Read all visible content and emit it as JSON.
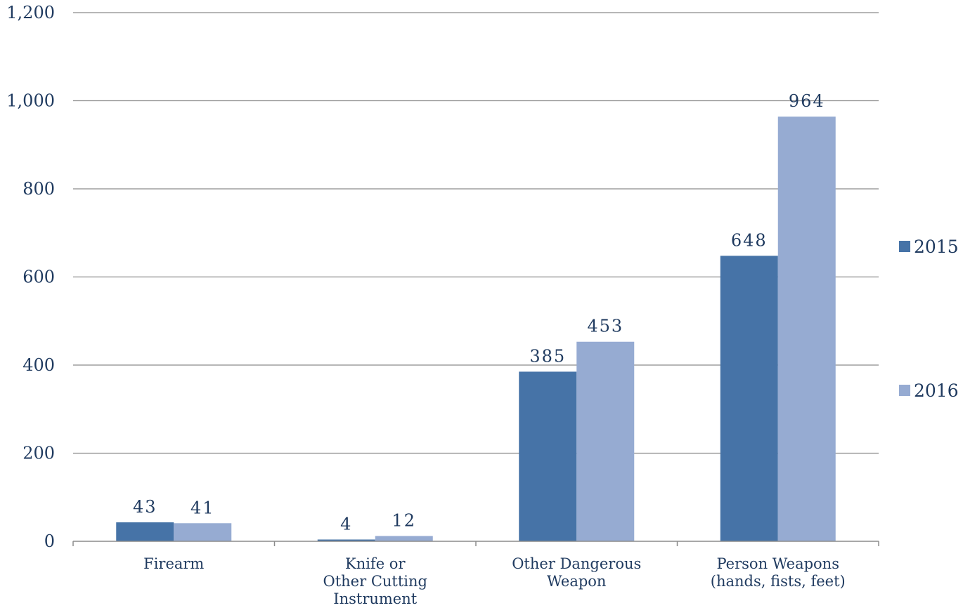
{
  "chart_data": {
    "type": "bar",
    "categories": [
      [
        "Firearm"
      ],
      [
        "Knife or",
        "Other Cutting",
        "Instrument"
      ],
      [
        "Other Dangerous",
        "Weapon"
      ],
      [
        "Person Weapons",
        "(hands, fists, feet)"
      ]
    ],
    "series": [
      {
        "name": "2015",
        "values": [
          43,
          4,
          385,
          648
        ],
        "color": "#4673a7"
      },
      {
        "name": "2016",
        "values": [
          41,
          12,
          453,
          964
        ],
        "color": "#96abd2"
      }
    ],
    "yticks": [
      "0",
      "200",
      "400",
      "600",
      "800",
      "1,000",
      "1,200"
    ],
    "ylim": [
      0,
      1200
    ],
    "grid": true,
    "legend_position": "right",
    "title": "",
    "xlabel": "",
    "ylabel": ""
  }
}
